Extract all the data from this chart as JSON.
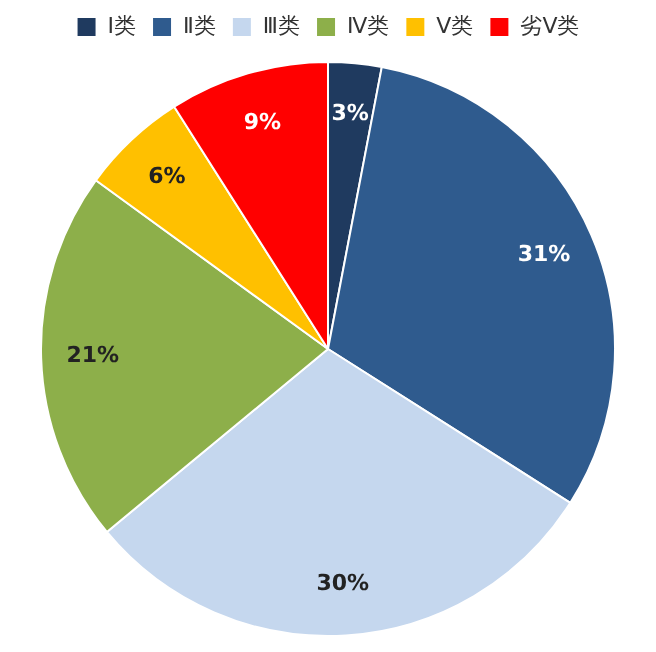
{
  "chart_data": {
    "type": "pie",
    "categories": [
      "Ⅰ类",
      "Ⅱ类",
      "Ⅲ类",
      "Ⅳ类",
      "Ⅴ类",
      "劣Ⅴ类"
    ],
    "values": [
      3,
      31,
      30,
      21,
      6,
      9
    ],
    "colors": [
      "#1f3a5f",
      "#2f5b8e",
      "#c5d7ee",
      "#8daf4a",
      "#ffc000",
      "#ff0000"
    ],
    "value_labels": [
      "3%",
      "31%",
      "30%",
      "21%",
      "6%",
      "9%"
    ],
    "legend": "top"
  }
}
